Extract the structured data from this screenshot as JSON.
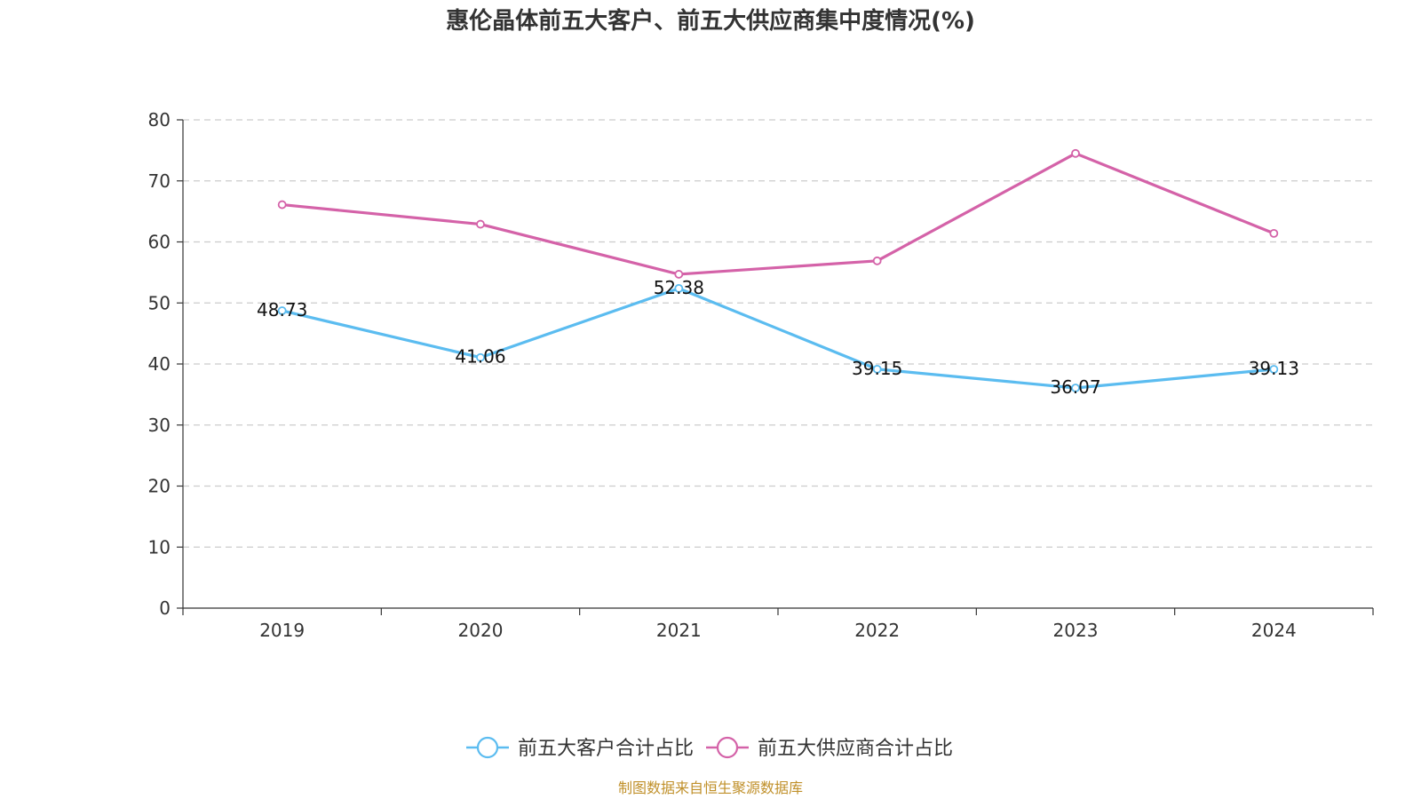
{
  "chart_data": {
    "type": "line",
    "title": "惠伦晶体前五大客户、前五大供应商集中度情况(%)",
    "xlabel": "",
    "ylabel": "",
    "categories": [
      "2019",
      "2020",
      "2021",
      "2022",
      "2023",
      "2024"
    ],
    "ylim": [
      0,
      80
    ],
    "yticks": [
      0,
      10,
      20,
      30,
      40,
      50,
      60,
      70,
      80
    ],
    "grid": true,
    "legend_position": "bottom",
    "series": [
      {
        "name": "前五大客户合计占比",
        "color": "#5bbcf0",
        "values": [
          48.73,
          41.06,
          52.38,
          39.15,
          36.07,
          39.13
        ],
        "data_labels": [
          "48.73",
          "41.06",
          "52.38",
          "39.15",
          "36.07",
          "39.13"
        ],
        "show_labels": true
      },
      {
        "name": "前五大供应商合计占比",
        "color": "#d462a8",
        "values": [
          66.1,
          62.9,
          54.7,
          56.9,
          74.5,
          61.4
        ],
        "show_labels": false
      }
    ]
  },
  "footer": {
    "source": "制图数据来自恒生聚源数据库"
  }
}
